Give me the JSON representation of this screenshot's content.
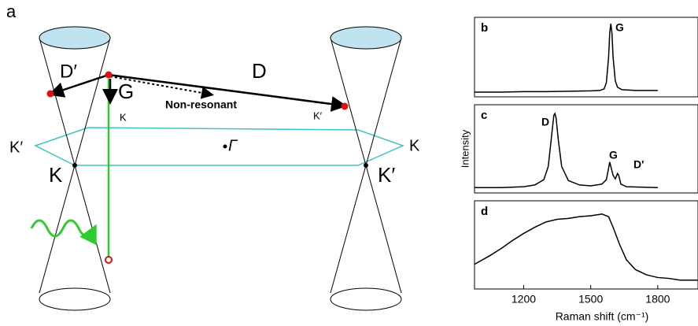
{
  "diagram": {
    "panel_label": "a",
    "labels": [
      "D′",
      "G",
      "D",
      "Non-resonant",
      "K",
      "K′",
      "K′",
      "K",
      "Γ",
      "K",
      "K′"
    ]
  },
  "chart_data": [
    {
      "type": "line",
      "panel_label": "b",
      "peak_labels": [
        "G"
      ],
      "color": "#000000",
      "xlim": [
        980,
        1980
      ],
      "ylim": [
        0,
        1
      ],
      "x": [
        980,
        1100,
        1200,
        1300,
        1400,
        1500,
        1540,
        1560,
        1570,
        1580,
        1585,
        1590,
        1595,
        1600,
        1610,
        1620,
        1640,
        1700,
        1800
      ],
      "values": [
        0.06,
        0.06,
        0.065,
        0.065,
        0.07,
        0.075,
        0.08,
        0.1,
        0.18,
        0.5,
        0.8,
        0.92,
        0.8,
        0.5,
        0.2,
        0.12,
        0.09,
        0.08,
        0.08
      ]
    },
    {
      "type": "line",
      "panel_label": "c",
      "peak_labels": [
        "D",
        "G",
        "D'"
      ],
      "ylabel": "Intensity",
      "color": "#000000",
      "xlim": [
        980,
        1980
      ],
      "ylim": [
        0,
        1
      ],
      "x": [
        980,
        1100,
        1200,
        1250,
        1290,
        1310,
        1325,
        1335,
        1340,
        1345,
        1355,
        1370,
        1400,
        1450,
        1500,
        1550,
        1570,
        1580,
        1585,
        1590,
        1600,
        1610,
        1620,
        1625,
        1635,
        1660,
        1800
      ],
      "values": [
        0.06,
        0.06,
        0.07,
        0.09,
        0.15,
        0.3,
        0.65,
        0.88,
        0.9,
        0.85,
        0.6,
        0.3,
        0.14,
        0.09,
        0.08,
        0.1,
        0.15,
        0.28,
        0.35,
        0.3,
        0.2,
        0.16,
        0.22,
        0.2,
        0.1,
        0.07,
        0.06
      ]
    },
    {
      "type": "line",
      "panel_label": "d",
      "xlabel": "Raman shift (cm⁻¹)",
      "color": "#000000",
      "xlim": [
        980,
        1980
      ],
      "ylim": [
        0,
        1
      ],
      "xticks": [
        1200,
        1500,
        1800
      ],
      "x": [
        980,
        1050,
        1100,
        1150,
        1200,
        1250,
        1300,
        1350,
        1400,
        1450,
        1500,
        1550,
        1580,
        1600,
        1630,
        1660,
        1700,
        1750,
        1800,
        1850,
        1900,
        1980
      ],
      "values": [
        0.28,
        0.38,
        0.46,
        0.55,
        0.63,
        0.7,
        0.76,
        0.79,
        0.8,
        0.82,
        0.83,
        0.85,
        0.82,
        0.7,
        0.5,
        0.33,
        0.22,
        0.16,
        0.13,
        0.12,
        0.1,
        0.1
      ]
    }
  ]
}
